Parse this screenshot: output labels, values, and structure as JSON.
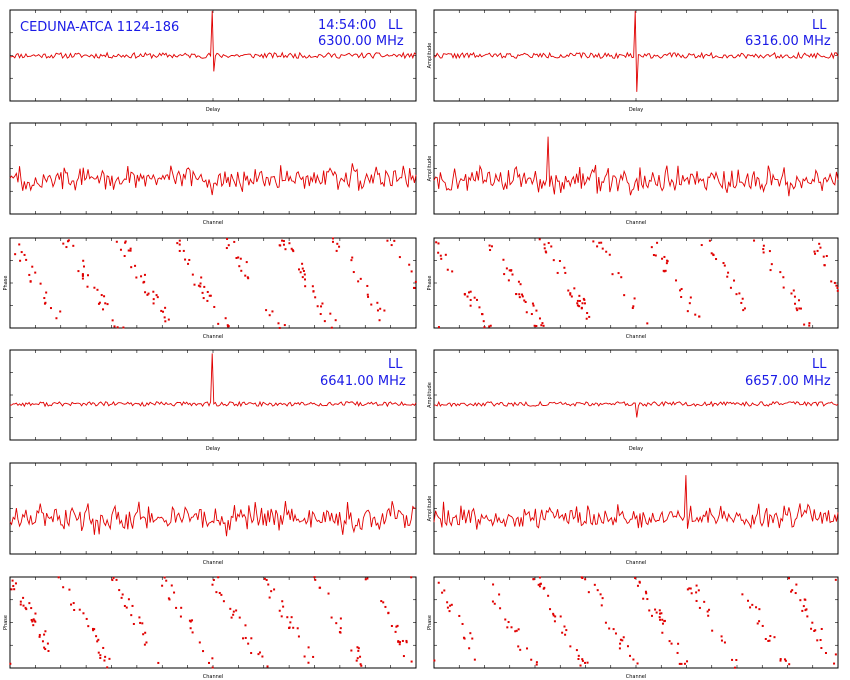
{
  "chart_data": [
    {
      "panel": "delay-6300",
      "type": "line",
      "source_title": "CEDUNA-ATCA 1124-186",
      "time": "14:54:00",
      "pol": "LL",
      "freq": "6300.00 MHz",
      "xlabel": "Delay",
      "ylabel": "",
      "xlim": [
        -256,
        256
      ],
      "ylim": [
        0,
        4
      ],
      "baseline": 2.0,
      "noise": 0.12,
      "peak": {
        "x": 0,
        "up": 3.4,
        "down": -0.7
      },
      "seed": 11,
      "color": "#e00000"
    },
    {
      "panel": "delay-6316",
      "type": "line",
      "pol": "LL",
      "freq": "6316.00 MHz",
      "xlabel": "Delay",
      "ylabel": "Amplitude",
      "xlim": [
        -256,
        256
      ],
      "ylim": [
        0,
        4
      ],
      "baseline": 2.0,
      "noise": 0.12,
      "peak": {
        "x": 0,
        "up": 3.0,
        "down": -1.6
      },
      "seed": 22,
      "color": "#e00000"
    },
    {
      "panel": "amp-6300",
      "type": "line",
      "xlabel": "Channel",
      "ylabel": "",
      "xlim": [
        0,
        256
      ],
      "ylim": [
        0,
        6
      ],
      "baseline": 2.3,
      "noise": 0.55,
      "seed": 33,
      "color": "#e00000"
    },
    {
      "panel": "amp-6316",
      "type": "line",
      "xlabel": "Channel",
      "ylabel": "Amplitude",
      "xlim": [
        0,
        256
      ],
      "ylim": [
        0,
        6
      ],
      "baseline": 2.2,
      "noise": 0.55,
      "spike": {
        "x": 72,
        "value": 5.1
      },
      "seed": 44,
      "color": "#e00000"
    },
    {
      "panel": "phase-6300",
      "type": "scatter",
      "xlabel": "Channel",
      "ylabel": "Phase",
      "xlim": [
        0,
        256
      ],
      "ylim": [
        -180,
        180
      ],
      "wraps": 7.5,
      "seed": 55,
      "color": "#e00000"
    },
    {
      "panel": "phase-6316",
      "type": "scatter",
      "xlabel": "Channel",
      "ylabel": "Phase",
      "xlim": [
        0,
        256
      ],
      "ylim": [
        -180,
        180
      ],
      "wraps": 7.5,
      "seed": 66,
      "color": "#e00000"
    },
    {
      "panel": "delay-6641",
      "type": "line",
      "pol": "LL",
      "freq": "6641.00 MHz",
      "xlabel": "Delay",
      "ylabel": "",
      "xlim": [
        -256,
        256
      ],
      "ylim": [
        0,
        4
      ],
      "baseline": 1.6,
      "noise": 0.1,
      "peak": {
        "x": 0,
        "up": 3.3,
        "down": 0
      },
      "seed": 77,
      "color": "#e00000"
    },
    {
      "panel": "delay-6657",
      "type": "line",
      "pol": "LL",
      "freq": "6657.00 MHz",
      "xlabel": "Delay",
      "ylabel": "Amplitude",
      "xlim": [
        -256,
        256
      ],
      "ylim": [
        0,
        4
      ],
      "baseline": 1.6,
      "noise": 0.1,
      "peak": {
        "x": 0,
        "up": 0,
        "down": -0.6
      },
      "seed": 88,
      "color": "#e00000"
    },
    {
      "panel": "amp-6641",
      "type": "line",
      "xlabel": "Channel",
      "ylabel": "",
      "xlim": [
        0,
        256
      ],
      "ylim": [
        0,
        6
      ],
      "baseline": 2.4,
      "noise": 0.6,
      "seed": 99,
      "color": "#e00000"
    },
    {
      "panel": "amp-6657",
      "type": "line",
      "xlabel": "Channel",
      "ylabel": "Amplitude",
      "xlim": [
        0,
        256
      ],
      "ylim": [
        0,
        6
      ],
      "baseline": 2.4,
      "noise": 0.55,
      "spike": {
        "x": 160,
        "value": 5.2
      },
      "seed": 110,
      "color": "#e00000"
    },
    {
      "panel": "phase-6641",
      "type": "scatter",
      "xlabel": "Channel",
      "ylabel": "Phase",
      "xlim": [
        0,
        256
      ],
      "ylim": [
        -180,
        180
      ],
      "wraps": 8,
      "seed": 121,
      "color": "#e00000"
    },
    {
      "panel": "phase-6657",
      "type": "scatter",
      "xlabel": "Channel",
      "ylabel": "Phase",
      "xlim": [
        0,
        256
      ],
      "ylim": [
        -180,
        180
      ],
      "wraps": 8,
      "seed": 132,
      "color": "#e00000"
    }
  ]
}
